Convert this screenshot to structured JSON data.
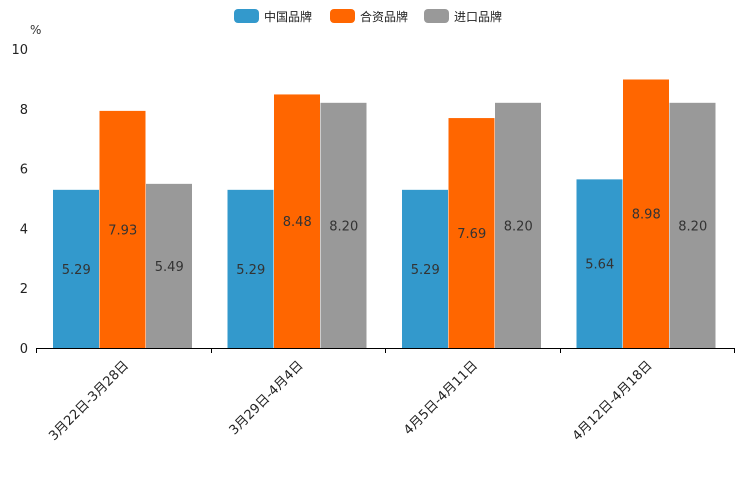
{
  "chart_data": {
    "type": "bar",
    "title": "",
    "xlabel": "",
    "ylabel": "%",
    "ylim": [
      0,
      10
    ],
    "yticks": [
      "0",
      "2",
      "4",
      "6",
      "8",
      "10"
    ],
    "categories": [
      "3月22日-3月28日",
      "3月29日-4月4日",
      "4月5日-4月11日",
      "4月12日-4月18日"
    ],
    "legend_position": "top-center",
    "grid": false,
    "series": [
      {
        "name": "中国品牌",
        "color": "#3399cc",
        "values": [
          5.29,
          5.29,
          5.29,
          5.64
        ],
        "labels": [
          "5.29",
          "5.29",
          "5.29",
          "5.64"
        ]
      },
      {
        "name": "合资品牌",
        "color": "#ff6600",
        "values": [
          7.93,
          8.48,
          7.69,
          8.98
        ],
        "labels": [
          "7.93",
          "8.48",
          "7.69",
          "8.98"
        ]
      },
      {
        "name": "进口品牌",
        "color": "#999999",
        "values": [
          5.49,
          8.2,
          8.2,
          8.2
        ],
        "labels": [
          "5.49",
          "8.20",
          "8.20",
          "8.20"
        ]
      }
    ]
  }
}
